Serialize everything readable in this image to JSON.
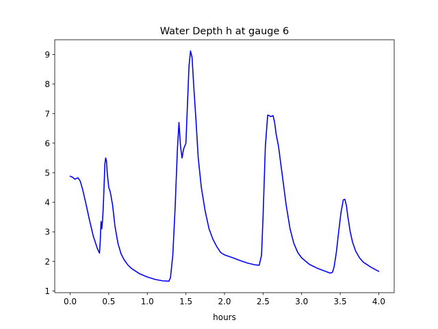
{
  "chart_data": {
    "type": "line",
    "title": "Water Depth h at gauge 6",
    "xlabel": "hours",
    "ylabel": "",
    "xlim": [
      -0.2,
      4.2
    ],
    "ylim": [
      0.94,
      9.5
    ],
    "xticks": [
      0.0,
      0.5,
      1.0,
      1.5,
      2.0,
      2.5,
      3.0,
      3.5,
      4.0
    ],
    "xtick_labels": [
      "0.0",
      "0.5",
      "1.0",
      "1.5",
      "2.0",
      "2.5",
      "3.0",
      "3.5",
      "4.0"
    ],
    "yticks": [
      1,
      2,
      3,
      4,
      5,
      6,
      7,
      8,
      9
    ],
    "ytick_labels": [
      "1",
      "2",
      "3",
      "4",
      "5",
      "6",
      "7",
      "8",
      "9"
    ],
    "grid": false,
    "legend": "none",
    "series": [
      {
        "color": "#0000ff",
        "x": [
          0.0,
          0.03,
          0.06,
          0.1,
          0.13,
          0.16,
          0.2,
          0.25,
          0.3,
          0.35,
          0.38,
          0.39,
          0.4,
          0.41,
          0.42,
          0.43,
          0.44,
          0.45,
          0.46,
          0.47,
          0.48,
          0.5,
          0.52,
          0.55,
          0.58,
          0.62,
          0.66,
          0.7,
          0.75,
          0.8,
          0.9,
          1.0,
          1.1,
          1.2,
          1.28,
          1.3,
          1.33,
          1.36,
          1.39,
          1.41,
          1.43,
          1.45,
          1.47,
          1.5,
          1.52,
          1.54,
          1.56,
          1.58,
          1.6,
          1.63,
          1.66,
          1.7,
          1.75,
          1.8,
          1.85,
          1.9,
          1.95,
          2.0,
          2.1,
          2.2,
          2.3,
          2.4,
          2.45,
          2.48,
          2.5,
          2.53,
          2.56,
          2.58,
          2.6,
          2.63,
          2.65,
          2.67,
          2.7,
          2.75,
          2.8,
          2.85,
          2.9,
          2.95,
          3.0,
          3.1,
          3.2,
          3.3,
          3.37,
          3.4,
          3.42,
          3.45,
          3.48,
          3.51,
          3.54,
          3.56,
          3.58,
          3.6,
          3.63,
          3.66,
          3.7,
          3.75,
          3.8,
          3.9,
          4.0
        ],
        "y": [
          4.88,
          4.85,
          4.78,
          4.83,
          4.72,
          4.45,
          4.0,
          3.4,
          2.85,
          2.45,
          2.28,
          2.7,
          3.35,
          3.1,
          3.4,
          3.9,
          4.6,
          5.3,
          5.5,
          5.4,
          5.0,
          4.5,
          4.35,
          3.9,
          3.2,
          2.6,
          2.25,
          2.05,
          1.87,
          1.75,
          1.58,
          1.47,
          1.39,
          1.34,
          1.33,
          1.45,
          2.2,
          3.8,
          5.8,
          6.7,
          5.9,
          5.5,
          5.8,
          6.0,
          7.3,
          8.6,
          9.12,
          8.9,
          8.0,
          6.8,
          5.5,
          4.5,
          3.7,
          3.1,
          2.75,
          2.5,
          2.3,
          2.22,
          2.13,
          2.03,
          1.94,
          1.88,
          1.87,
          2.2,
          3.5,
          5.9,
          6.95,
          6.93,
          6.9,
          6.93,
          6.7,
          6.3,
          5.9,
          4.9,
          3.9,
          3.1,
          2.6,
          2.3,
          2.12,
          1.9,
          1.77,
          1.67,
          1.6,
          1.63,
          1.8,
          2.3,
          3.0,
          3.65,
          4.08,
          4.1,
          3.9,
          3.5,
          3.0,
          2.65,
          2.35,
          2.12,
          1.97,
          1.8,
          1.66
        ]
      }
    ]
  }
}
